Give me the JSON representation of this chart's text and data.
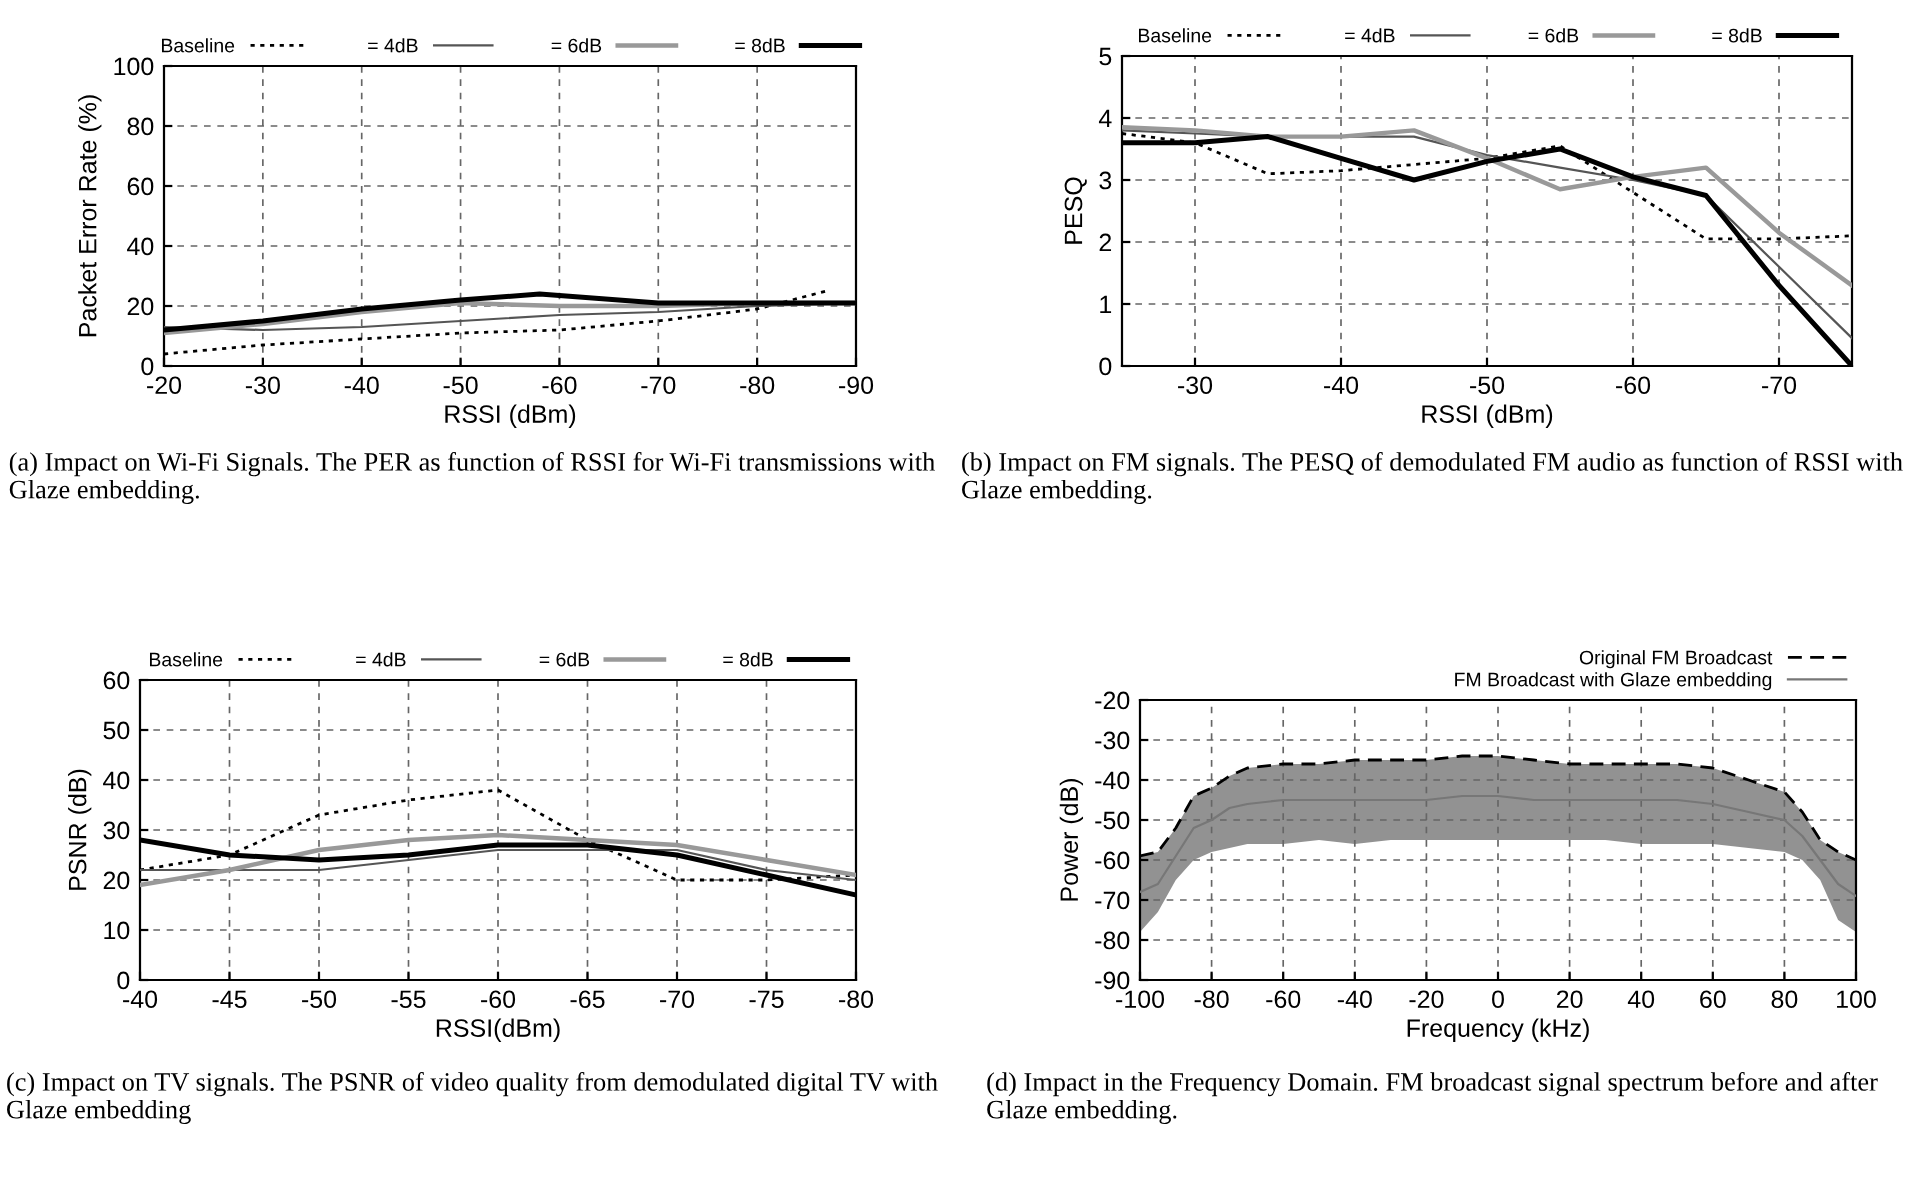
{
  "chart_data": [
    {
      "type": "line",
      "xlabel": "RSSI (dBm)",
      "ylabel": "Packet Error Rate (%)",
      "xlim": [
        -20,
        -90
      ],
      "xticks": [
        -20,
        -30,
        -40,
        -50,
        -60,
        -70,
        -80,
        -90
      ],
      "ylim": [
        0,
        100
      ],
      "yticks": [
        0,
        20,
        40,
        60,
        80,
        100
      ],
      "grid": true,
      "legend": "top",
      "marker": "none",
      "annotations": [
        "(a) Impact on Wi-Fi Signals. The PER as function of RSSI for Wi-Fi transmissions with Glaze embedding."
      ],
      "series": [
        {
          "name": "Baseline",
          "color": "#000000",
          "line_style": "dotted",
          "x": [
            -20,
            -30,
            -40,
            -50,
            -60,
            -70,
            -80,
            -87
          ],
          "values": [
            4,
            7,
            9,
            11,
            12,
            15,
            19,
            25
          ]
        },
        {
          "name": "= 4dB",
          "color": "#555555",
          "line_style": "solid",
          "x": [
            -20,
            -30,
            -40,
            -50,
            -60,
            -70,
            -80,
            -90
          ],
          "values": [
            13,
            12,
            13,
            15,
            17,
            18,
            20,
            21
          ]
        },
        {
          "name": "= 6dB",
          "color": "#999999",
          "line_style": "solid",
          "x": [
            -20,
            -30,
            -40,
            -50,
            -60,
            -70,
            -80,
            -90
          ],
          "values": [
            11,
            14,
            18,
            21,
            20,
            20,
            21,
            21
          ]
        },
        {
          "name": "= 8dB",
          "color": "#000000",
          "line_style": "solid",
          "x": [
            -20,
            -30,
            -40,
            -50,
            -58,
            -70,
            -80,
            -90
          ],
          "values": [
            12,
            15,
            19,
            22,
            24,
            21,
            21,
            21
          ]
        }
      ]
    },
    {
      "type": "line",
      "xlabel": "RSSI (dBm)",
      "ylabel": "PESQ",
      "xlim": [
        -25,
        -75
      ],
      "xticks": [
        -30,
        -40,
        -50,
        -60,
        -70
      ],
      "ylim": [
        0,
        5
      ],
      "yticks": [
        0,
        1,
        2,
        3,
        4,
        5
      ],
      "grid": true,
      "legend": "top",
      "marker": "none",
      "annotations": [
        "(b) Impact on FM signals. The PESQ of demodulated FM audio as function of RSSI with Glaze embedding."
      ],
      "series": [
        {
          "name": "Baseline",
          "color": "#000000",
          "line_style": "dotted",
          "x": [
            -25,
            -30,
            -35,
            -40,
            -45,
            -50,
            -55,
            -60,
            -65,
            -70,
            -75
          ],
          "values": [
            3.75,
            3.6,
            3.1,
            3.15,
            3.25,
            3.35,
            3.55,
            2.8,
            2.05,
            2.05,
            2.1
          ]
        },
        {
          "name": "= 4dB",
          "color": "#555555",
          "line_style": "solid",
          "x": [
            -25,
            -30,
            -35,
            -40,
            -45,
            -50,
            -55,
            -60,
            -65,
            -70,
            -75
          ],
          "values": [
            3.8,
            3.75,
            3.7,
            3.7,
            3.7,
            3.4,
            3.2,
            3.0,
            2.75,
            1.6,
            0.45
          ]
        },
        {
          "name": "= 6dB",
          "color": "#999999",
          "line_style": "solid",
          "x": [
            -25,
            -30,
            -35,
            -40,
            -45,
            -50,
            -55,
            -60,
            -65,
            -70,
            -75
          ],
          "values": [
            3.85,
            3.8,
            3.7,
            3.7,
            3.8,
            3.35,
            2.85,
            3.05,
            3.2,
            2.15,
            1.3
          ]
        },
        {
          "name": "= 8dB",
          "color": "#000000",
          "line_style": "solid",
          "x": [
            -25,
            -30,
            -35,
            -40,
            -45,
            -50,
            -55,
            -60,
            -65,
            -70,
            -75
          ],
          "values": [
            3.6,
            3.6,
            3.7,
            3.35,
            3.0,
            3.3,
            3.5,
            3.05,
            2.75,
            1.3,
            0.0
          ]
        }
      ]
    },
    {
      "type": "line",
      "xlabel": "RSSI(dBm)",
      "ylabel": "PSNR (dB)",
      "xlim": [
        -40,
        -80
      ],
      "xticks": [
        -40,
        -45,
        -50,
        -55,
        -60,
        -65,
        -70,
        -75,
        -80
      ],
      "ylim": [
        0,
        60
      ],
      "yticks": [
        0,
        10,
        20,
        30,
        40,
        50,
        60
      ],
      "grid": true,
      "legend": "top",
      "marker": "none",
      "annotations": [
        "(c) Impact on TV signals. The PSNR of video quality from demodulated digital TV with Glaze embedding"
      ],
      "series": [
        {
          "name": "Baseline",
          "color": "#000000",
          "line_style": "dotted",
          "x": [
            -40,
            -45,
            -50,
            -55,
            -60,
            -65,
            -70,
            -75,
            -80
          ],
          "values": [
            22,
            25,
            33,
            36,
            38,
            28,
            20,
            20,
            21
          ]
        },
        {
          "name": "= 4dB",
          "color": "#555555",
          "line_style": "solid",
          "x": [
            -40,
            -45,
            -50,
            -55,
            -60,
            -65,
            -70,
            -75,
            -80
          ],
          "values": [
            22,
            22,
            22,
            24,
            26,
            26,
            26,
            22,
            20
          ]
        },
        {
          "name": "= 6dB",
          "color": "#999999",
          "line_style": "solid",
          "x": [
            -40,
            -45,
            -50,
            -55,
            -60,
            -65,
            -70,
            -75,
            -80
          ],
          "values": [
            19,
            22,
            26,
            28,
            29,
            28,
            27,
            24,
            21
          ]
        },
        {
          "name": "= 8dB",
          "color": "#000000",
          "line_style": "solid",
          "x": [
            -40,
            -45,
            -50,
            -55,
            -60,
            -65,
            -70,
            -75,
            -80
          ],
          "values": [
            28,
            25,
            24,
            25,
            27,
            27,
            25,
            21,
            17
          ]
        }
      ]
    },
    {
      "type": "line",
      "xlabel": "Frequency (kHz)",
      "ylabel": "Power (dB)",
      "xlim": [
        -100,
        100
      ],
      "xticks": [
        -100,
        -80,
        -60,
        -40,
        -20,
        0,
        20,
        40,
        60,
        80,
        100
      ],
      "ylim": [
        -90,
        -20
      ],
      "yticks": [
        -90,
        -80,
        -70,
        -60,
        -50,
        -40,
        -30,
        -20
      ],
      "grid": true,
      "legend": "top right",
      "marker": "none",
      "annotations": [
        "(d) Impact in the Frequency Domain. FM broadcast signal spectrum before and after Glaze embedding."
      ],
      "series": [
        {
          "name": "Original FM Broadcast",
          "color": "#000000",
          "line_style": "dashed",
          "x": [
            -100,
            -95,
            -90,
            -85,
            -80,
            -75,
            -70,
            -60,
            -50,
            -40,
            -30,
            -20,
            -10,
            0,
            10,
            20,
            30,
            40,
            50,
            60,
            70,
            80,
            85,
            90,
            95,
            100
          ],
          "values": [
            -59,
            -58,
            -52,
            -44,
            -42,
            -39,
            -37,
            -36,
            -36,
            -35,
            -35,
            -35,
            -34,
            -34,
            -35,
            -36,
            -36,
            -36,
            -36,
            -37,
            -40,
            -43,
            -48,
            -55,
            -58,
            -60
          ]
        },
        {
          "name": "FM Broadcast with Glaze embedding",
          "color": "#777777",
          "line_style": "solid",
          "x": [
            -100,
            -95,
            -90,
            -85,
            -80,
            -75,
            -70,
            -60,
            -50,
            -40,
            -30,
            -20,
            -10,
            0,
            10,
            20,
            30,
            40,
            50,
            60,
            70,
            80,
            85,
            90,
            95,
            100
          ],
          "values": [
            -68,
            -66,
            -59,
            -52,
            -50,
            -47,
            -46,
            -45,
            -45,
            -45,
            -45,
            -45,
            -44,
            -44,
            -45,
            -45,
            -45,
            -45,
            -45,
            -46,
            -48,
            -50,
            -54,
            -60,
            -66,
            -69
          ],
          "lower": [
            -78,
            -73,
            -65,
            -60,
            -58,
            -57,
            -56,
            -56,
            -55,
            -56,
            -55,
            -55,
            -55,
            -55,
            -55,
            -55,
            -55,
            -56,
            -56,
            -56,
            -57,
            -58,
            -60,
            -65,
            -75,
            -78
          ],
          "upper": [
            -59,
            -58,
            -52,
            -44,
            -42,
            -39,
            -37,
            -36,
            -36,
            -35,
            -35,
            -35,
            -34,
            -34,
            -35,
            -36,
            -36,
            -36,
            -36,
            -37,
            -40,
            -43,
            -48,
            -55,
            -58,
            -60
          ]
        }
      ]
    }
  ]
}
